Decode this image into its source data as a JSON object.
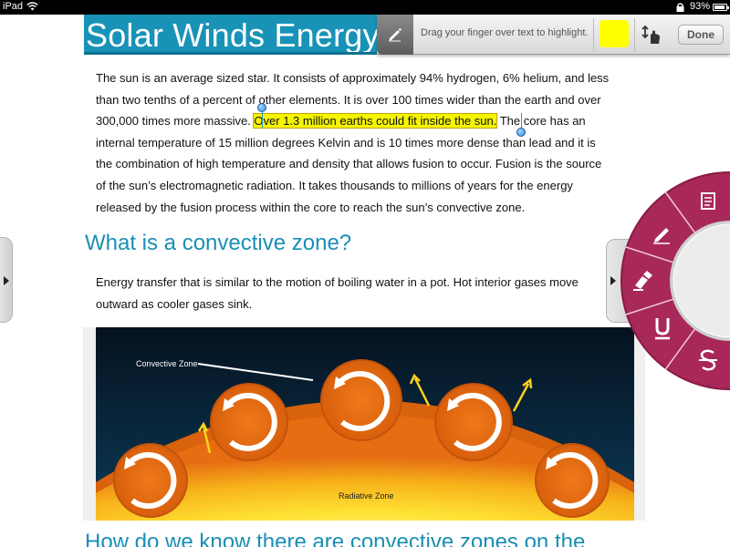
{
  "status_bar": {
    "carrier": "iPad",
    "battery_pct": "93%",
    "battery_level": 0.93
  },
  "title": "Solar Winds Energy S",
  "toolbar": {
    "hint": "Drag your finger over text to highlight.",
    "color": "#ffff00",
    "done_label": "Done"
  },
  "para1": {
    "line1": "The sun is an average sized star. It consists of approximately 94% hydrogen, 6% helium, and less",
    "line2": "than two tenths of a percent of other elements. It is over 100 times wider than the earth and over",
    "line3_pre": "300,000 times more massive.",
    "line3_highlight": "Over 1.3 million earths could fit inside the sun.",
    "line3_post": " The core has an",
    "line4": "internal temperature of 15 million degrees Kelvin and is 10 times more dense than lead and it is",
    "line5": "the combination of high temperature and density that allows fusion to occur. Fusion is the source",
    "line6": "of the sun’s electromagnetic radiation. It takes thousands to millions of years for the energy",
    "line7": "released by the fusion process within the core to reach the sun’s convective zone."
  },
  "heading2": "What is a convective zone?",
  "para2": {
    "line1": "Energy transfer that is similar to the motion of boiling water in a pot. Hot interior gases move",
    "line2": "outward as cooler gases sink."
  },
  "illustration": {
    "label_convective": "Convective Zone",
    "label_radiative": "Radiative Zone"
  },
  "heading3": "How do we know there are convective zones on the",
  "radial_menu": {
    "accent": "#9b1f4e",
    "items": [
      "note-icon",
      "pen-icon",
      "highlighter-icon",
      "underline-icon",
      "strikethrough-icon"
    ]
  }
}
